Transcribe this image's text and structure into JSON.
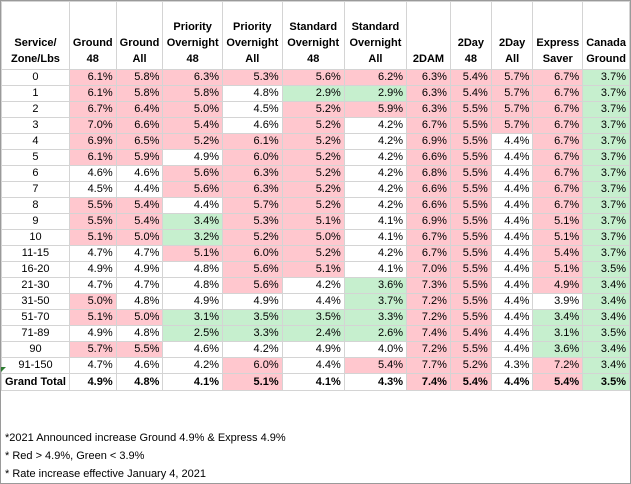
{
  "headers": [
    [
      "Service/",
      "Zone/Lbs"
    ],
    [
      "Ground",
      "48"
    ],
    [
      "Ground",
      "All"
    ],
    [
      "Priority",
      "Overnight",
      "48"
    ],
    [
      "Priority",
      "Overnight",
      "All"
    ],
    [
      "Standard",
      "Overnight",
      "48"
    ],
    [
      "Standard",
      "Overnight",
      "All"
    ],
    [
      "2DAM"
    ],
    [
      "2Day",
      "48"
    ],
    [
      "2Day",
      "All"
    ],
    [
      "Express",
      "Saver"
    ],
    [
      "Canada",
      "Ground"
    ]
  ],
  "rows": [
    {
      "label": "0",
      "cells": [
        [
          "6.1%",
          "r"
        ],
        [
          "5.8%",
          "r"
        ],
        [
          "6.3%",
          "r"
        ],
        [
          "5.3%",
          "r"
        ],
        [
          "5.6%",
          "r"
        ],
        [
          "6.2%",
          "r"
        ],
        [
          "6.3%",
          "r"
        ],
        [
          "5.4%",
          "r"
        ],
        [
          "5.7%",
          "r"
        ],
        [
          "6.7%",
          "r"
        ],
        [
          "3.7%",
          "g"
        ]
      ]
    },
    {
      "label": "1",
      "cells": [
        [
          "6.1%",
          "r"
        ],
        [
          "5.8%",
          "r"
        ],
        [
          "5.8%",
          "r"
        ],
        [
          "4.8%",
          ""
        ],
        [
          "2.9%",
          "g"
        ],
        [
          "2.9%",
          "g"
        ],
        [
          "6.3%",
          "r"
        ],
        [
          "5.4%",
          "r"
        ],
        [
          "5.7%",
          "r"
        ],
        [
          "6.7%",
          "r"
        ],
        [
          "3.7%",
          "g"
        ]
      ]
    },
    {
      "label": "2",
      "cells": [
        [
          "6.7%",
          "r"
        ],
        [
          "6.4%",
          "r"
        ],
        [
          "5.0%",
          "r"
        ],
        [
          "4.5%",
          ""
        ],
        [
          "5.2%",
          "r"
        ],
        [
          "5.9%",
          "r"
        ],
        [
          "6.3%",
          "r"
        ],
        [
          "5.5%",
          "r"
        ],
        [
          "5.7%",
          "r"
        ],
        [
          "6.7%",
          "r"
        ],
        [
          "3.7%",
          "g"
        ]
      ]
    },
    {
      "label": "3",
      "cells": [
        [
          "7.0%",
          "r"
        ],
        [
          "6.6%",
          "r"
        ],
        [
          "5.4%",
          "r"
        ],
        [
          "4.6%",
          ""
        ],
        [
          "5.2%",
          "r"
        ],
        [
          "4.2%",
          ""
        ],
        [
          "6.7%",
          "r"
        ],
        [
          "5.5%",
          "r"
        ],
        [
          "5.7%",
          "r"
        ],
        [
          "6.7%",
          "r"
        ],
        [
          "3.7%",
          "g"
        ]
      ]
    },
    {
      "label": "4",
      "cells": [
        [
          "6.9%",
          "r"
        ],
        [
          "6.5%",
          "r"
        ],
        [
          "5.2%",
          "r"
        ],
        [
          "6.1%",
          "r"
        ],
        [
          "5.2%",
          "r"
        ],
        [
          "4.2%",
          ""
        ],
        [
          "6.9%",
          "r"
        ],
        [
          "5.5%",
          "r"
        ],
        [
          "4.4%",
          ""
        ],
        [
          "6.7%",
          "r"
        ],
        [
          "3.7%",
          "g"
        ]
      ]
    },
    {
      "label": "5",
      "cells": [
        [
          "6.1%",
          "r"
        ],
        [
          "5.9%",
          "r"
        ],
        [
          "4.9%",
          ""
        ],
        [
          "6.0%",
          "r"
        ],
        [
          "5.2%",
          "r"
        ],
        [
          "4.2%",
          ""
        ],
        [
          "6.6%",
          "r"
        ],
        [
          "5.5%",
          "r"
        ],
        [
          "4.4%",
          ""
        ],
        [
          "6.7%",
          "r"
        ],
        [
          "3.7%",
          "g"
        ]
      ]
    },
    {
      "label": "6",
      "cells": [
        [
          "4.6%",
          ""
        ],
        [
          "4.6%",
          ""
        ],
        [
          "5.6%",
          "r"
        ],
        [
          "6.3%",
          "r"
        ],
        [
          "5.2%",
          "r"
        ],
        [
          "4.2%",
          ""
        ],
        [
          "6.8%",
          "r"
        ],
        [
          "5.5%",
          "r"
        ],
        [
          "4.4%",
          ""
        ],
        [
          "6.7%",
          "r"
        ],
        [
          "3.7%",
          "g"
        ]
      ]
    },
    {
      "label": "7",
      "cells": [
        [
          "4.5%",
          ""
        ],
        [
          "4.4%",
          ""
        ],
        [
          "5.6%",
          "r"
        ],
        [
          "6.3%",
          "r"
        ],
        [
          "5.2%",
          "r"
        ],
        [
          "4.2%",
          ""
        ],
        [
          "6.6%",
          "r"
        ],
        [
          "5.5%",
          "r"
        ],
        [
          "4.4%",
          ""
        ],
        [
          "6.7%",
          "r"
        ],
        [
          "3.7%",
          "g"
        ]
      ]
    },
    {
      "label": "8",
      "cells": [
        [
          "5.5%",
          "r"
        ],
        [
          "5.4%",
          "r"
        ],
        [
          "4.4%",
          ""
        ],
        [
          "5.7%",
          "r"
        ],
        [
          "5.2%",
          "r"
        ],
        [
          "4.2%",
          ""
        ],
        [
          "6.6%",
          "r"
        ],
        [
          "5.5%",
          "r"
        ],
        [
          "4.4%",
          ""
        ],
        [
          "6.7%",
          "r"
        ],
        [
          "3.7%",
          "g"
        ]
      ]
    },
    {
      "label": "9",
      "cells": [
        [
          "5.5%",
          "r"
        ],
        [
          "5.4%",
          "r"
        ],
        [
          "3.4%",
          "g"
        ],
        [
          "5.3%",
          "r"
        ],
        [
          "5.1%",
          "r"
        ],
        [
          "4.1%",
          ""
        ],
        [
          "6.9%",
          "r"
        ],
        [
          "5.5%",
          "r"
        ],
        [
          "4.4%",
          ""
        ],
        [
          "5.1%",
          "r"
        ],
        [
          "3.7%",
          "g"
        ]
      ]
    },
    {
      "label": "10",
      "cells": [
        [
          "5.1%",
          "r"
        ],
        [
          "5.0%",
          "r"
        ],
        [
          "3.2%",
          "g"
        ],
        [
          "5.2%",
          "r"
        ],
        [
          "5.0%",
          "r"
        ],
        [
          "4.1%",
          ""
        ],
        [
          "6.7%",
          "r"
        ],
        [
          "5.5%",
          "r"
        ],
        [
          "4.4%",
          ""
        ],
        [
          "5.1%",
          "r"
        ],
        [
          "3.7%",
          "g"
        ]
      ]
    },
    {
      "label": "11-15",
      "cells": [
        [
          "4.7%",
          ""
        ],
        [
          "4.7%",
          ""
        ],
        [
          "5.1%",
          "r"
        ],
        [
          "6.0%",
          "r"
        ],
        [
          "5.2%",
          "r"
        ],
        [
          "4.2%",
          ""
        ],
        [
          "6.7%",
          "r"
        ],
        [
          "5.5%",
          "r"
        ],
        [
          "4.4%",
          ""
        ],
        [
          "5.4%",
          "r"
        ],
        [
          "3.7%",
          "g"
        ]
      ]
    },
    {
      "label": "16-20",
      "cells": [
        [
          "4.9%",
          ""
        ],
        [
          "4.9%",
          ""
        ],
        [
          "4.8%",
          ""
        ],
        [
          "5.6%",
          "r"
        ],
        [
          "5.1%",
          "r"
        ],
        [
          "4.1%",
          ""
        ],
        [
          "7.0%",
          "r"
        ],
        [
          "5.5%",
          "r"
        ],
        [
          "4.4%",
          ""
        ],
        [
          "5.1%",
          "r"
        ],
        [
          "3.5%",
          "g"
        ]
      ]
    },
    {
      "label": "21-30",
      "cells": [
        [
          "4.7%",
          ""
        ],
        [
          "4.7%",
          ""
        ],
        [
          "4.8%",
          ""
        ],
        [
          "5.6%",
          "r"
        ],
        [
          "4.2%",
          ""
        ],
        [
          "3.6%",
          "g"
        ],
        [
          "7.3%",
          "r"
        ],
        [
          "5.5%",
          "r"
        ],
        [
          "4.4%",
          ""
        ],
        [
          "4.9%",
          "r"
        ],
        [
          "3.4%",
          "g"
        ]
      ]
    },
    {
      "label": "31-50",
      "cells": [
        [
          "5.0%",
          "r"
        ],
        [
          "4.8%",
          ""
        ],
        [
          "4.9%",
          ""
        ],
        [
          "4.9%",
          ""
        ],
        [
          "4.4%",
          ""
        ],
        [
          "3.7%",
          "g"
        ],
        [
          "7.2%",
          "r"
        ],
        [
          "5.5%",
          "r"
        ],
        [
          "4.4%",
          ""
        ],
        [
          "3.9%",
          ""
        ],
        [
          "3.4%",
          "g"
        ]
      ]
    },
    {
      "label": "51-70",
      "cells": [
        [
          "5.1%",
          "r"
        ],
        [
          "5.0%",
          "r"
        ],
        [
          "3.1%",
          "g"
        ],
        [
          "3.5%",
          "g"
        ],
        [
          "3.5%",
          "g"
        ],
        [
          "3.3%",
          "g"
        ],
        [
          "7.2%",
          "r"
        ],
        [
          "5.5%",
          "r"
        ],
        [
          "4.4%",
          ""
        ],
        [
          "3.4%",
          "g"
        ],
        [
          "3.4%",
          "g"
        ]
      ]
    },
    {
      "label": "71-89",
      "cells": [
        [
          "4.9%",
          ""
        ],
        [
          "4.8%",
          ""
        ],
        [
          "2.5%",
          "g"
        ],
        [
          "3.3%",
          "g"
        ],
        [
          "2.4%",
          "g"
        ],
        [
          "2.6%",
          "g"
        ],
        [
          "7.4%",
          "r"
        ],
        [
          "5.4%",
          "r"
        ],
        [
          "4.4%",
          ""
        ],
        [
          "3.1%",
          "g"
        ],
        [
          "3.5%",
          "g"
        ]
      ]
    },
    {
      "label": "90",
      "cells": [
        [
          "5.7%",
          "r"
        ],
        [
          "5.5%",
          "r"
        ],
        [
          "4.6%",
          ""
        ],
        [
          "4.2%",
          ""
        ],
        [
          "4.9%",
          ""
        ],
        [
          "4.0%",
          ""
        ],
        [
          "7.2%",
          "r"
        ],
        [
          "5.5%",
          "r"
        ],
        [
          "4.4%",
          ""
        ],
        [
          "3.6%",
          "g"
        ],
        [
          "3.4%",
          "g"
        ]
      ]
    },
    {
      "label": "91-150",
      "cells": [
        [
          "4.7%",
          ""
        ],
        [
          "4.6%",
          ""
        ],
        [
          "4.2%",
          ""
        ],
        [
          "6.0%",
          "r"
        ],
        [
          "4.4%",
          ""
        ],
        [
          "5.4%",
          "r"
        ],
        [
          "7.7%",
          "r"
        ],
        [
          "5.2%",
          "r"
        ],
        [
          "4.3%",
          ""
        ],
        [
          "7.2%",
          "r"
        ],
        [
          "3.4%",
          "g"
        ]
      ]
    }
  ],
  "total": {
    "label": "Grand Total",
    "cells": [
      [
        "4.9%",
        ""
      ],
      [
        "4.8%",
        ""
      ],
      [
        "4.1%",
        ""
      ],
      [
        "5.1%",
        "r"
      ],
      [
        "4.1%",
        ""
      ],
      [
        "4.3%",
        ""
      ],
      [
        "7.4%",
        "r"
      ],
      [
        "5.4%",
        "r"
      ],
      [
        "4.4%",
        ""
      ],
      [
        "5.4%",
        "r"
      ],
      [
        "3.5%",
        "g"
      ]
    ]
  },
  "notes": [
    "*2021 Announced increase Ground 4.9% & Express 4.9%",
    "* Red > 4.9%, Green < 3.9%",
    "* Rate increase effective January 4, 2021"
  ],
  "colors": {
    "red_fill": "#ffc7ce",
    "green_fill": "#c6efce"
  }
}
